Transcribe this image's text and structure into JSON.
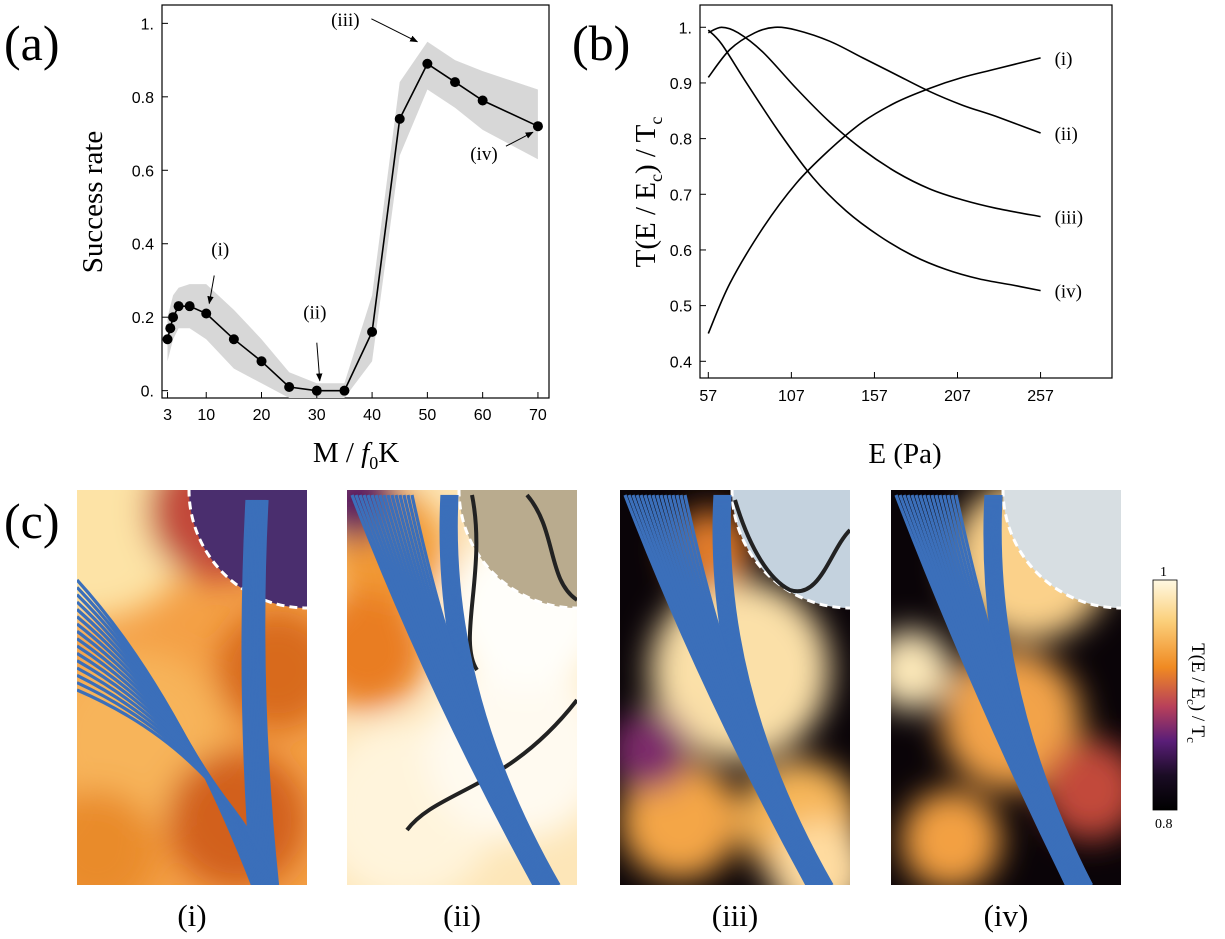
{
  "panel_labels": {
    "a": "(a)",
    "b": "(b)",
    "c": "(c)"
  },
  "chart_data": [
    {
      "id": "a",
      "type": "line",
      "xlabel": "M / f0K",
      "ylabel": "Success rate",
      "xlim": [
        2,
        72
      ],
      "ylim": [
        -0.02,
        1.05
      ],
      "xticks": [
        "3",
        "10",
        "20",
        "30",
        "40",
        "50",
        "60",
        "70"
      ],
      "yticks": [
        "0.",
        "0.2",
        "0.4",
        "0.6",
        "0.8",
        "1."
      ],
      "x": [
        3,
        3.5,
        4,
        5,
        7,
        10,
        15,
        20,
        25,
        30,
        35,
        40,
        45,
        50,
        55,
        60,
        70
      ],
      "y": [
        0.14,
        0.17,
        0.2,
        0.23,
        0.23,
        0.21,
        0.14,
        0.08,
        0.01,
        0.0,
        0.0,
        0.16,
        0.74,
        0.89,
        0.84,
        0.79,
        0.72
      ],
      "band_upper": [
        0.2,
        0.23,
        0.26,
        0.28,
        0.29,
        0.29,
        0.22,
        0.14,
        0.05,
        0.02,
        0.02,
        0.26,
        0.84,
        0.95,
        0.9,
        0.87,
        0.82
      ],
      "band_lower": [
        0.08,
        0.11,
        0.14,
        0.17,
        0.17,
        0.14,
        0.06,
        0.02,
        -0.02,
        -0.02,
        -0.02,
        0.08,
        0.64,
        0.82,
        0.77,
        0.71,
        0.63
      ],
      "annotations": [
        {
          "text": "(i)",
          "x": 10,
          "y": 0.21
        },
        {
          "text": "(ii)",
          "x": 30,
          "y": 0.0
        },
        {
          "text": "(iii)",
          "x": 50,
          "y": 0.89
        },
        {
          "text": "(iv)",
          "x": 70,
          "y": 0.72
        }
      ]
    },
    {
      "id": "b",
      "type": "line",
      "xlabel": "E (Pa)",
      "ylabel": "T(E / Ec) / Tc",
      "xlim": [
        52,
        300
      ],
      "ylim": [
        0.37,
        1.04
      ],
      "xticks": [
        "57",
        "107",
        "157",
        "207",
        "257"
      ],
      "yticks": [
        "0.4",
        "0.5",
        "0.6",
        "0.7",
        "0.8",
        "0.9",
        "1."
      ],
      "series": [
        {
          "name": "(i)",
          "x": [
            57,
            70,
            90,
            110,
            130,
            150,
            170,
            190,
            210,
            230,
            257
          ],
          "y": [
            0.45,
            0.54,
            0.64,
            0.72,
            0.78,
            0.83,
            0.865,
            0.89,
            0.91,
            0.925,
            0.945
          ]
        },
        {
          "name": "(ii)",
          "x": [
            57,
            70,
            85,
            97,
            110,
            130,
            150,
            170,
            190,
            210,
            230,
            257
          ],
          "y": [
            0.91,
            0.96,
            0.99,
            1.0,
            0.995,
            0.975,
            0.945,
            0.915,
            0.885,
            0.86,
            0.84,
            0.81
          ]
        },
        {
          "name": "(iii)",
          "x": [
            57,
            65,
            75,
            90,
            110,
            130,
            150,
            170,
            190,
            210,
            230,
            257
          ],
          "y": [
            0.99,
            1.0,
            0.99,
            0.955,
            0.89,
            0.83,
            0.78,
            0.74,
            0.71,
            0.69,
            0.675,
            0.66
          ]
        },
        {
          "name": "(iv)",
          "x": [
            57,
            65,
            80,
            100,
            120,
            140,
            160,
            180,
            200,
            220,
            240,
            257
          ],
          "y": [
            0.995,
            0.97,
            0.9,
            0.81,
            0.73,
            0.67,
            0.625,
            0.59,
            0.565,
            0.548,
            0.537,
            0.527
          ]
        }
      ]
    },
    {
      "id": "c",
      "type": "heatmap",
      "colorbar": {
        "label": "T(E / Ec) / Tc",
        "max": "1",
        "min": "0.8"
      },
      "subpanels": [
        "(i)",
        "(ii)",
        "(iii)",
        "(iv)"
      ]
    }
  ],
  "colors": {
    "band": "#d7d7d7",
    "streamline": "#3b6fba",
    "line": "#000000"
  }
}
